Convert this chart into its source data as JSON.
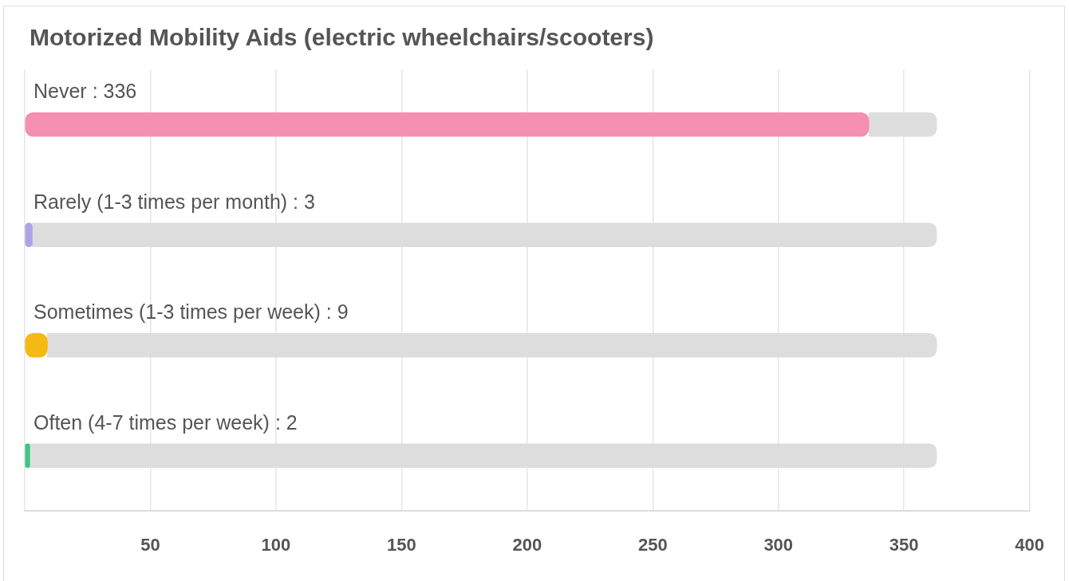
{
  "chart_data": {
    "type": "bar",
    "orientation": "horizontal",
    "stacked": true,
    "title": "Motorized Mobility Aids (electric wheelchairs/scooters)",
    "categories": [
      "Never : 336",
      "Rarely (1-3 times per month) : 3",
      "Sometimes (1-3 times per week) : 9",
      "Often (4-7 times per week) : 2"
    ],
    "series": [
      {
        "colors": [
          "#f48fb1",
          "#ada4e6",
          "#f4b912",
          "#3dc584"
        ],
        "values": [
          336,
          3,
          9,
          2
        ]
      },
      {
        "color": "#dddddd",
        "values": [
          27,
          360,
          354,
          361
        ]
      }
    ],
    "xlim": [
      0,
      400
    ],
    "xticks": [
      {
        "value": 0,
        "label": null
      },
      50,
      100,
      150,
      200,
      250,
      300,
      350,
      400
    ],
    "grid": "x",
    "legend": false
  }
}
